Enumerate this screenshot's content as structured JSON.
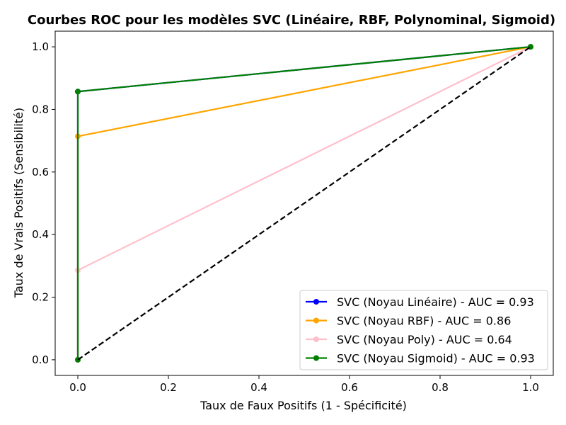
{
  "chart_data": {
    "type": "line",
    "title": "Courbes ROC pour les modèles SVC (Linéaire, RBF, Polynominal, Sigmoid)",
    "xlabel": "Taux de Faux Positifs (1 - Spécificité)",
    "ylabel": "Taux de Vrais Positifs (Sensibilité)",
    "xlim": [
      -0.05,
      1.05
    ],
    "ylim": [
      -0.05,
      1.05
    ],
    "xticks": [
      "0.0",
      "0.2",
      "0.4",
      "0.6",
      "0.8",
      "1.0"
    ],
    "yticks": [
      "0.0",
      "0.2",
      "0.4",
      "0.6",
      "0.8",
      "1.0"
    ],
    "legend_position": "lower-right",
    "grid": false,
    "series": [
      {
        "name": "SVC (Noyau Linéaire) - AUC = 0.93",
        "color": "#0000ff",
        "x": [
          0.0,
          0.0,
          1.0
        ],
        "y": [
          0.0,
          0.857,
          1.0
        ]
      },
      {
        "name": "SVC (Noyau RBF) - AUC = 0.86",
        "color": "#ffa500",
        "x": [
          0.0,
          0.0,
          1.0
        ],
        "y": [
          0.0,
          0.714,
          1.0
        ]
      },
      {
        "name": "SVC (Noyau Poly) - AUC = 0.64",
        "color": "#ffc0cb",
        "x": [
          0.0,
          0.0,
          1.0
        ],
        "y": [
          0.0,
          0.286,
          1.0
        ]
      },
      {
        "name": "SVC (Noyau Sigmoid) - AUC = 0.93",
        "color": "#008000",
        "x": [
          0.0,
          0.0,
          1.0
        ],
        "y": [
          0.0,
          0.857,
          1.0
        ]
      }
    ],
    "reference_line": {
      "x": [
        0.0,
        1.0
      ],
      "y": [
        0.0,
        1.0
      ],
      "color": "#000000",
      "style": "dashed"
    }
  }
}
